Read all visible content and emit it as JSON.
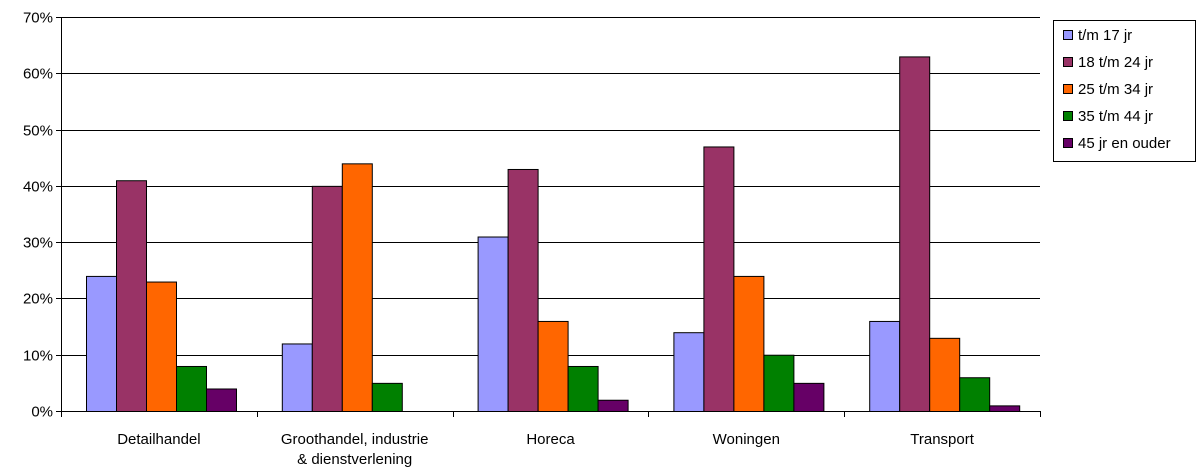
{
  "chart_data": {
    "type": "bar",
    "categories": [
      [
        "Detailhandel"
      ],
      [
        "Groothandel, industrie",
        "& dienstverlening"
      ],
      [
        "Horeca"
      ],
      [
        "Woningen"
      ],
      [
        "Transport"
      ]
    ],
    "series": [
      {
        "name": "t/m 17 jr",
        "color": "#9999ff",
        "values": [
          24,
          12,
          31,
          14,
          16
        ]
      },
      {
        "name": "18 t/m 24 jr",
        "color": "#993366",
        "values": [
          41,
          40,
          43,
          47,
          63
        ]
      },
      {
        "name": "25 t/m 34 jr",
        "color": "#ff6600",
        "values": [
          23,
          44,
          16,
          24,
          13
        ]
      },
      {
        "name": "35 t/m 44 jr",
        "color": "#008000",
        "values": [
          8,
          5,
          8,
          10,
          6
        ]
      },
      {
        "name": "45 jr en ouder",
        "color": "#660066",
        "values": [
          4,
          0,
          2,
          5,
          1
        ]
      }
    ],
    "ylim": [
      0,
      70
    ],
    "yticks": [
      "0%",
      "10%",
      "20%",
      "30%",
      "40%",
      "50%",
      "60%",
      "70%"
    ],
    "grid": true,
    "legend": "right",
    "title": "",
    "xlabel": "",
    "ylabel": ""
  }
}
